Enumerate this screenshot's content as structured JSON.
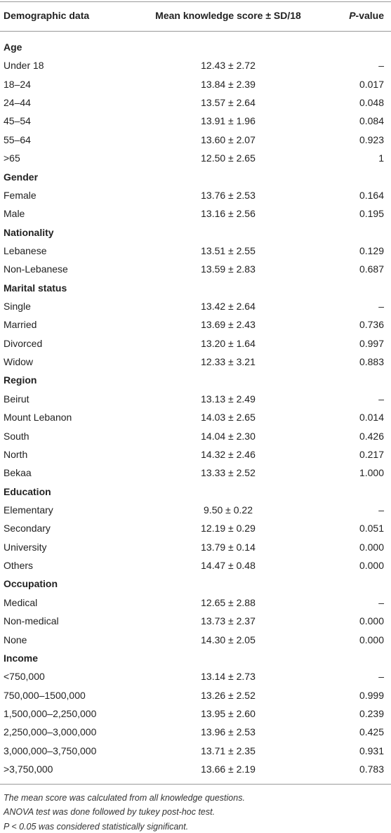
{
  "header": [
    "Demographic data",
    "Mean knowledge score ± SD/18",
    {
      "italic": "P",
      "text": "-value"
    }
  ],
  "groups": [
    {
      "title": "Age",
      "rows": [
        [
          "Under 18",
          "12.43 ± 2.72",
          "–"
        ],
        [
          "18–24",
          "13.84 ± 2.39",
          "0.017"
        ],
        [
          "24–44",
          "13.57 ± 2.64",
          "0.048"
        ],
        [
          "45–54",
          "13.91 ± 1.96",
          "0.084"
        ],
        [
          "55–64",
          "13.60 ± 2.07",
          "0.923"
        ],
        [
          ">65",
          "12.50 ± 2.65",
          "1"
        ]
      ]
    },
    {
      "title": "Gender",
      "rows": [
        [
          "Female",
          "13.76 ± 2.53",
          "0.164"
        ],
        [
          "Male",
          "13.16 ± 2.56",
          "0.195"
        ]
      ]
    },
    {
      "title": "Nationality",
      "rows": [
        [
          "Lebanese",
          "13.51 ± 2.55",
          "0.129"
        ],
        [
          "Non-Lebanese",
          "13.59 ± 2.83",
          "0.687"
        ]
      ]
    },
    {
      "title": "Marital status",
      "rows": [
        [
          "Single",
          "13.42 ± 2.64",
          "–"
        ],
        [
          "Married",
          "13.69 ± 2.43",
          "0.736"
        ],
        [
          "Divorced",
          "13.20 ± 1.64",
          "0.997"
        ],
        [
          "Widow",
          "12.33 ± 3.21",
          "0.883"
        ]
      ]
    },
    {
      "title": "Region",
      "rows": [
        [
          "Beirut",
          "13.13 ± 2.49",
          "–"
        ],
        [
          "Mount Lebanon",
          "14.03 ± 2.65",
          "0.014"
        ],
        [
          "South",
          "14.04 ± 2.30",
          "0.426"
        ],
        [
          "North",
          "14.32 ± 2.46",
          "0.217"
        ],
        [
          "Bekaa",
          "13.33 ± 2.52",
          "1.000"
        ]
      ]
    },
    {
      "title": "Education",
      "rows": [
        [
          "Elementary",
          "9.50 ± 0.22",
          "–"
        ],
        [
          "Secondary",
          "12.19 ± 0.29",
          "0.051"
        ],
        [
          "University",
          "13.79 ± 0.14",
          "0.000"
        ],
        [
          "Others",
          "14.47 ± 0.48",
          "0.000"
        ]
      ]
    },
    {
      "title": "Occupation",
      "rows": [
        [
          "Medical",
          "12.65 ± 2.88",
          "–"
        ],
        [
          "Non-medical",
          "13.73 ± 2.37",
          "0.000"
        ],
        [
          "None",
          "14.30 ± 2.05",
          "0.000"
        ]
      ]
    },
    {
      "title": "Income",
      "rows": [
        [
          "<750,000",
          "13.14 ± 2.73",
          "–"
        ],
        [
          "750,000–1500,000",
          "13.26 ± 2.52",
          "0.999"
        ],
        [
          "1,500,000–2,250,000",
          "13.95 ± 2.60",
          "0.239"
        ],
        [
          "2,250,000–3,000,000",
          "13.96 ± 2.53",
          "0.425"
        ],
        [
          "3,000,000–3,750,000",
          "13.71 ± 2.35",
          "0.931"
        ],
        [
          ">3,750,000",
          "13.66 ± 2.19",
          "0.783"
        ]
      ]
    }
  ],
  "footnotes": [
    "The mean score was calculated from all knowledge questions.",
    "ANOVA test was done followed by tukey post-hoc test.",
    "P < 0.05 was considered statistically significant."
  ]
}
